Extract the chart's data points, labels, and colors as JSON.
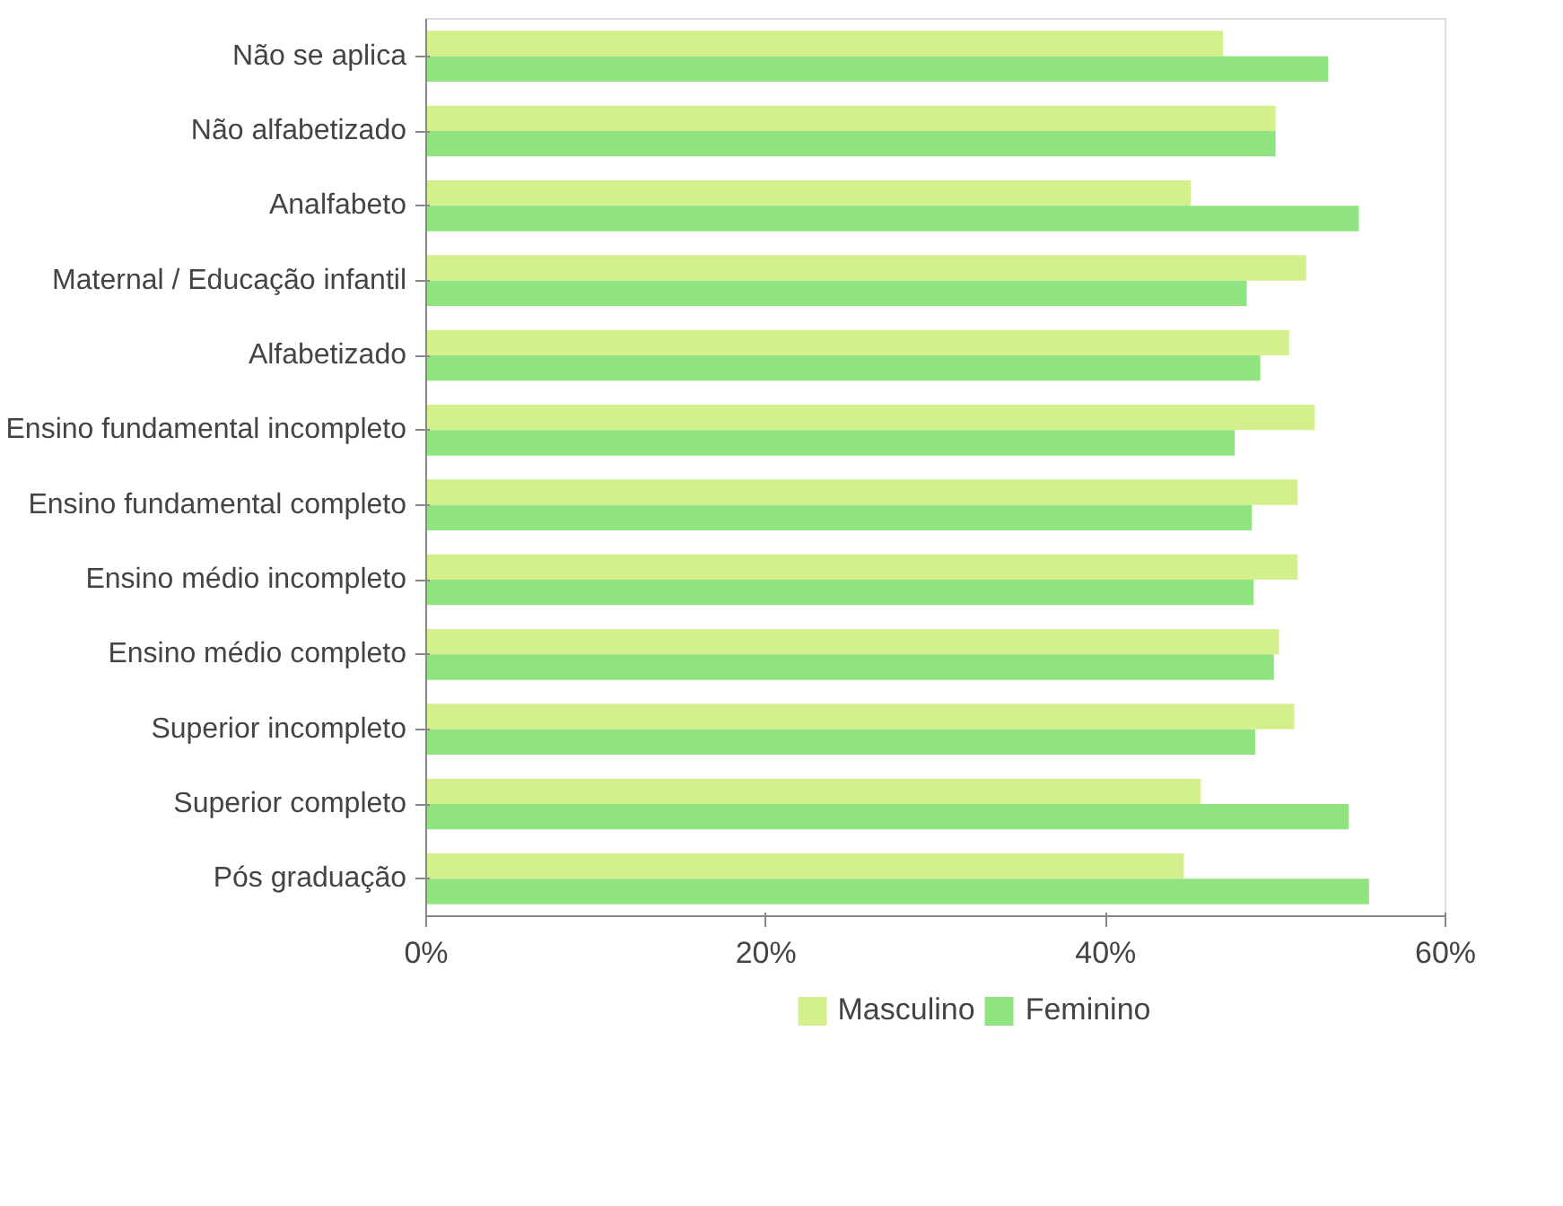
{
  "chart_data": {
    "type": "bar",
    "orientation": "horizontal",
    "categories": [
      "Não se aplica",
      "Não alfabetizado",
      "Analfabeto",
      "Maternal / Educação infantil",
      "Alfabetizado",
      "Ensino fundamental incompleto",
      "Ensino fundamental completo",
      "Ensino médio incompleto",
      "Ensino médio completo",
      "Superior incompleto",
      "Superior completo",
      "Pós graduação"
    ],
    "series": [
      {
        "name": "Masculino",
        "color": "#d4f08c",
        "values": [
          46.9,
          50.0,
          45.0,
          51.8,
          50.8,
          52.3,
          51.3,
          51.3,
          50.2,
          51.1,
          45.6,
          44.6
        ]
      },
      {
        "name": "Feminino",
        "color": "#90e480",
        "values": [
          53.1,
          50.0,
          54.9,
          48.3,
          49.1,
          47.6,
          48.6,
          48.7,
          49.9,
          48.8,
          54.3,
          55.5
        ]
      }
    ],
    "xlim": [
      0,
      60
    ],
    "xticks": [
      {
        "value": 0,
        "label": "0%"
      },
      {
        "value": 20,
        "label": "20%"
      },
      {
        "value": 40,
        "label": "40%"
      },
      {
        "value": 60,
        "label": "60%"
      }
    ],
    "grid": false,
    "legend": "bottom"
  }
}
